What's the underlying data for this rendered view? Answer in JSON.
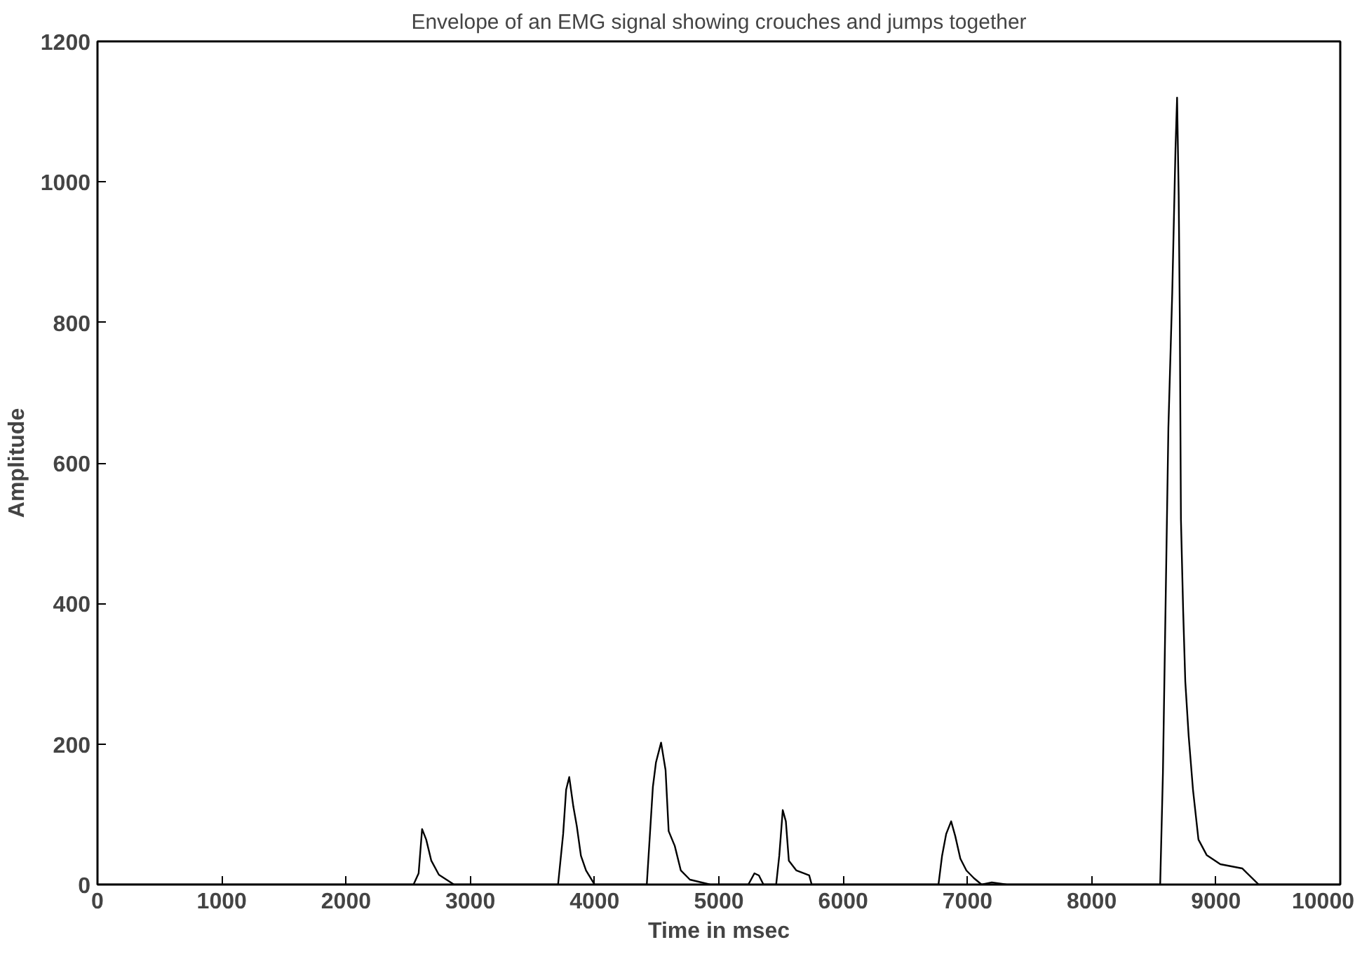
{
  "chart_data": {
    "type": "line",
    "title": "Envelope of an EMG signal showing crouches and jumps together",
    "xlabel": "Time in msec",
    "ylabel": "Amplitude",
    "xlim": [
      0,
      10000
    ],
    "ylim": [
      0,
      1200
    ],
    "xticks": [
      0,
      1000,
      2000,
      3000,
      4000,
      5000,
      6000,
      7000,
      8000,
      9000,
      10000
    ],
    "yticks": [
      0,
      200,
      400,
      600,
      800,
      1000,
      1200
    ],
    "line_style": "solid",
    "series": [
      {
        "color": "#000000",
        "x": [
          0,
          2543,
          2584,
          2612,
          2645,
          2686,
          2747,
          2869,
          3706,
          3747,
          3771,
          3796,
          3829,
          3857,
          3890,
          3931,
          4000,
          4420,
          4469,
          4494,
          4535,
          4571,
          4596,
          4645,
          4694,
          4767,
          4931,
          5237,
          5286,
          5322,
          5359,
          5461,
          5486,
          5514,
          5539,
          5563,
          5624,
          5727,
          5747,
          6767,
          6796,
          6829,
          6869,
          6902,
          6943,
          6992,
          7053,
          7114,
          7196,
          7318,
          8551,
          8573,
          8617,
          8648,
          8674,
          8687,
          8700,
          8709,
          8718,
          8736,
          8753,
          8780,
          8815,
          8859,
          8925,
          9035,
          9211,
          9344,
          10000
        ],
        "values": [
          0,
          0,
          16,
          79,
          64,
          34,
          14,
          0,
          0,
          72,
          135,
          153,
          111,
          83,
          41,
          20,
          0,
          0,
          139,
          174,
          202,
          163,
          76,
          55,
          20,
          7,
          0,
          0,
          16,
          13,
          0,
          0,
          41,
          106,
          90,
          34,
          20,
          13,
          0,
          0,
          41,
          72,
          90,
          69,
          37,
          20,
          9,
          0,
          3,
          0,
          0,
          158,
          650,
          842,
          1046,
          1120,
          981,
          805,
          520,
          389,
          289,
          212,
          135,
          64,
          42,
          29,
          23,
          0,
          0
        ]
      }
    ]
  }
}
